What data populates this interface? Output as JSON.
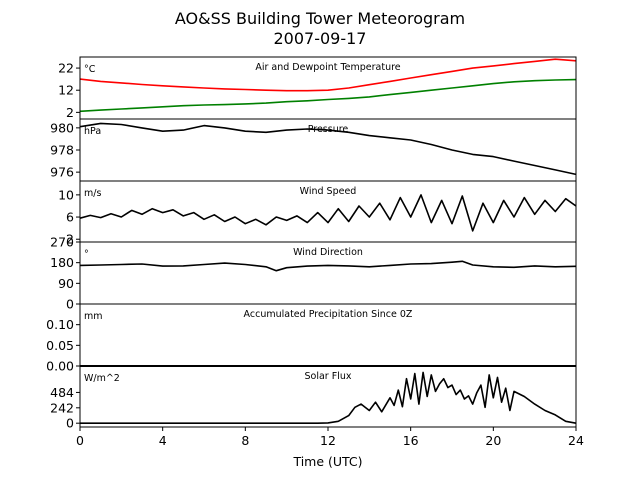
{
  "figure": {
    "title_line1": "AO&SS Building Tower Meteorogram",
    "title_line2": "2007-09-17",
    "xlabel": "Time (UTC)"
  },
  "chart_data": [
    {
      "type": "line",
      "title": "Air and Dewpoint Temperature",
      "unit": "°C",
      "xlim": [
        0,
        24
      ],
      "ylim": [
        -1,
        27
      ],
      "yticks": [
        2,
        12,
        22
      ],
      "x_ticks": [
        0,
        4,
        8,
        12,
        16,
        20,
        24
      ],
      "series": [
        {
          "color": "#ff0000",
          "x": [
            0,
            1,
            2,
            3,
            4,
            5,
            6,
            7,
            8,
            9,
            10,
            11,
            12,
            13,
            14,
            15,
            16,
            17,
            18,
            19,
            20,
            21,
            22,
            23,
            24
          ],
          "values": [
            17,
            16,
            15.3,
            14.6,
            14,
            13.5,
            13,
            12.6,
            12.3,
            12,
            11.8,
            11.8,
            12,
            13,
            14.5,
            16,
            17.5,
            19,
            20.5,
            22,
            23,
            24,
            25,
            26,
            25.3
          ]
        },
        {
          "color": "#008000",
          "x": [
            0,
            1,
            2,
            3,
            4,
            5,
            6,
            7,
            8,
            9,
            10,
            11,
            12,
            13,
            14,
            15,
            16,
            17,
            18,
            19,
            20,
            21,
            22,
            23,
            24
          ],
          "values": [
            2.5,
            3,
            3.5,
            4,
            4.5,
            5,
            5.3,
            5.5,
            5.8,
            6.2,
            6.8,
            7.2,
            7.8,
            8.3,
            9,
            10,
            11,
            12,
            13,
            14,
            15,
            15.8,
            16.3,
            16.6,
            16.8
          ]
        }
      ]
    },
    {
      "type": "line",
      "title": "Pressure",
      "unit": "hPa",
      "xlim": [
        0,
        24
      ],
      "ylim": [
        975.2,
        980.8
      ],
      "yticks": [
        976,
        978,
        980
      ],
      "series": [
        {
          "color": "#000000",
          "x": [
            0,
            1,
            2,
            3,
            4,
            5,
            6,
            7,
            8,
            9,
            10,
            11,
            12,
            13,
            14,
            15,
            16,
            17,
            18,
            19,
            20,
            21,
            22,
            23,
            24
          ],
          "values": [
            980.1,
            980.4,
            980.3,
            980.0,
            979.7,
            979.8,
            980.2,
            980.0,
            979.7,
            979.6,
            979.8,
            979.9,
            979.8,
            979.6,
            979.3,
            979.1,
            978.9,
            978.5,
            978.0,
            977.6,
            977.4,
            977.0,
            976.6,
            976.2,
            975.8
          ]
        }
      ]
    },
    {
      "type": "line",
      "title": "Wind Speed",
      "unit": "m/s",
      "xlim": [
        0,
        24
      ],
      "ylim": [
        1.5,
        12.5
      ],
      "yticks": [
        2,
        6,
        10
      ],
      "series": [
        {
          "color": "#000000",
          "x": [
            0,
            0.5,
            1,
            1.5,
            2,
            2.5,
            3,
            3.5,
            4,
            4.5,
            5,
            5.5,
            6,
            6.5,
            7,
            7.5,
            8,
            8.5,
            9,
            9.5,
            10,
            10.5,
            11,
            11.5,
            12,
            12.5,
            13,
            13.5,
            14,
            14.5,
            15,
            15.5,
            16,
            16.5,
            17,
            17.5,
            18,
            18.5,
            19,
            19.5,
            20,
            20.5,
            21,
            21.5,
            22,
            22.5,
            23,
            23.5,
            24
          ],
          "values": [
            5.8,
            6.3,
            5.9,
            6.6,
            6.0,
            7.2,
            6.5,
            7.5,
            6.8,
            7.3,
            6.2,
            6.8,
            5.6,
            6.4,
            5.2,
            6.0,
            4.8,
            5.6,
            4.6,
            6.0,
            5.4,
            6.2,
            5.0,
            6.8,
            5.0,
            7.5,
            5.2,
            8.0,
            6.0,
            8.5,
            5.5,
            9.5,
            6.0,
            10.0,
            5.0,
            9.0,
            4.8,
            9.8,
            3.5,
            8.5,
            5.0,
            9.0,
            6.0,
            9.5,
            6.5,
            9.0,
            7.0,
            9.3,
            8.0
          ]
        }
      ]
    },
    {
      "type": "line",
      "title": "Wind Direction",
      "unit": "°",
      "xlim": [
        0,
        24
      ],
      "ylim": [
        0,
        270
      ],
      "yticks": [
        0,
        90,
        180,
        270
      ],
      "series": [
        {
          "color": "#000000",
          "x": [
            0,
            1,
            2,
            3,
            4,
            5,
            6,
            7,
            8,
            9,
            9.5,
            10,
            11,
            12,
            13,
            14,
            15,
            16,
            17,
            18,
            18.5,
            19,
            20,
            21,
            22,
            23,
            24
          ],
          "values": [
            168,
            170,
            172,
            174,
            165,
            166,
            172,
            178,
            172,
            162,
            145,
            158,
            165,
            168,
            166,
            162,
            168,
            174,
            176,
            182,
            186,
            170,
            162,
            160,
            166,
            162,
            164
          ]
        }
      ]
    },
    {
      "type": "line",
      "title": "Accumulated Precipitation Since 0Z",
      "unit": "mm",
      "xlim": [
        0,
        24
      ],
      "ylim": [
        0,
        0.15
      ],
      "yticks": [
        0.0,
        0.05,
        0.1
      ],
      "ytick_labels": [
        "0.00",
        "0.05",
        "0.10"
      ],
      "series": [
        {
          "color": "#000000",
          "x": [
            0,
            24
          ],
          "values": [
            0,
            0
          ]
        }
      ]
    },
    {
      "type": "line",
      "title": "Solar Flux",
      "unit": "W/m^2",
      "xlim": [
        0,
        24
      ],
      "ylim": [
        -60,
        900
      ],
      "yticks": [
        0,
        242,
        484
      ],
      "series": [
        {
          "color": "#000000",
          "x": [
            0,
            11.5,
            12,
            12.5,
            13,
            13.3,
            13.6,
            14,
            14.3,
            14.6,
            15,
            15.2,
            15.4,
            15.6,
            15.8,
            16,
            16.2,
            16.4,
            16.6,
            16.8,
            17,
            17.2,
            17.4,
            17.6,
            17.8,
            18,
            18.2,
            18.4,
            18.6,
            18.8,
            19,
            19.2,
            19.4,
            19.6,
            19.8,
            20,
            20.2,
            20.4,
            20.6,
            20.8,
            21,
            21.5,
            22,
            22.5,
            23,
            23.5,
            24
          ],
          "values": [
            0,
            0,
            5,
            30,
            120,
            250,
            300,
            200,
            330,
            180,
            400,
            280,
            520,
            260,
            700,
            380,
            780,
            300,
            800,
            420,
            760,
            500,
            620,
            700,
            560,
            600,
            450,
            520,
            380,
            430,
            300,
            480,
            600,
            250,
            760,
            400,
            720,
            330,
            550,
            200,
            500,
            420,
            300,
            200,
            130,
            30,
            0
          ]
        }
      ]
    }
  ]
}
